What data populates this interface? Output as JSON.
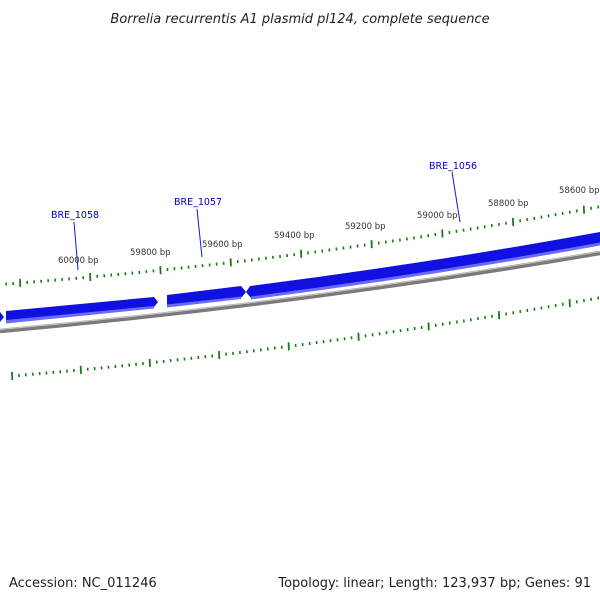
{
  "title": "Borrelia recurrentis A1 plasmid pl124, complete sequence",
  "footer": {
    "accession": "Accession: NC_011246",
    "summary": "Topology: linear; Length: 123,937 bp; Genes: 91"
  },
  "colors": {
    "gene_fill": "#1010e0",
    "gene_highlight": "#6a6aff",
    "gene_label": "#0000c0",
    "backbone": "#808080",
    "backbone_highlight": "#c8c8c8",
    "tick": "#1a7a1a",
    "text": "#222222"
  },
  "ruler": {
    "unit": "bp",
    "labels": [
      "60000 bp",
      "59800 bp",
      "59600 bp",
      "59400 bp",
      "59200 bp",
      "59000 bp",
      "58800 bp",
      "58600 bp"
    ]
  },
  "genes": [
    {
      "name": "BRE_1058"
    },
    {
      "name": "BRE_1057"
    },
    {
      "name": "BRE_1056"
    }
  ]
}
